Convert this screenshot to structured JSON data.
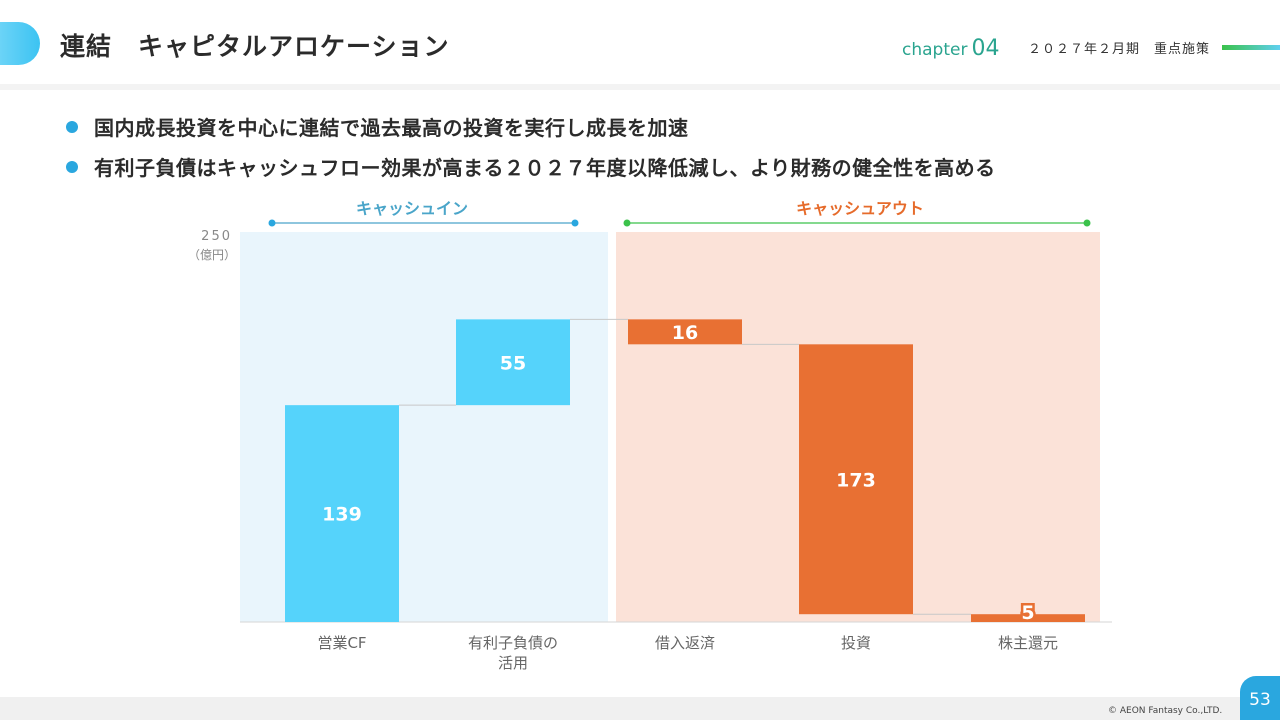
{
  "header": {
    "title": "連結　キャピタルアロケーション",
    "chapter_label": "chapter",
    "chapter_number": "04",
    "subtitle": "２０２７年２月期　重点施策"
  },
  "bullets": [
    "国内成長投資を中心に連結で過去最高の投資を実行し成長を加速",
    "有利子負債はキャッシュフロー効果が高まる２０２７年度以降低減し、より財務の健全性を高める"
  ],
  "footer": {
    "copyright": "© AEON Fantasy Co.,LTD.",
    "page_number": "53"
  },
  "colors": {
    "cash_in": "#55d3fb",
    "cash_out": "#e87033",
    "cash_in_bg": "#e9f5fc",
    "cash_out_bg": "#fbe2d8",
    "cash_in_label": "#4aa5c9",
    "cash_out_label": "#e66b2b"
  },
  "chart_data": {
    "type": "bar",
    "subtype": "waterfall",
    "y_max_label": "250",
    "unit": "（億円）",
    "ylim": [
      0,
      250
    ],
    "groups": [
      {
        "name": "キャッシュイン",
        "categories": [
          0,
          1
        ]
      },
      {
        "name": "キャッシュアウト",
        "categories": [
          2,
          3,
          4
        ]
      }
    ],
    "categories": [
      [
        "営業CF"
      ],
      [
        "有利子負債の",
        "活用"
      ],
      [
        "借入返済"
      ],
      [
        "投資"
      ],
      [
        "株主還元"
      ]
    ],
    "values": [
      139,
      55,
      16,
      173,
      5
    ],
    "direction": [
      "in",
      "in",
      "out",
      "out",
      "out"
    ],
    "data_labels": [
      "139",
      "55",
      "16",
      "173",
      "5"
    ]
  }
}
